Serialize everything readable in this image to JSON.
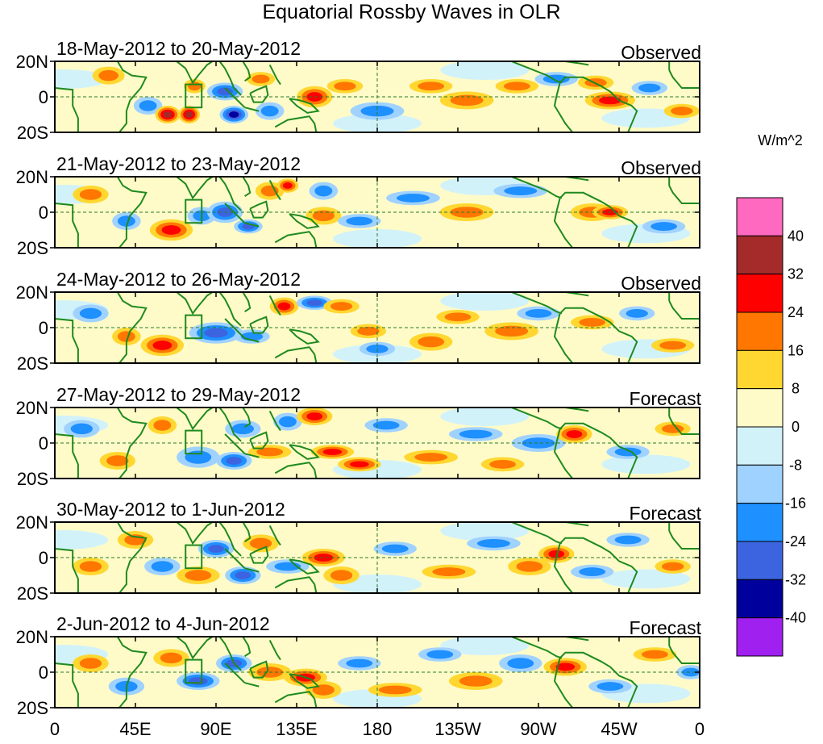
{
  "chart_data": {
    "type": "heatmap",
    "title": "Equatorial Rossby Waves in OLR",
    "units": "W/m^2",
    "x_ticks": [
      "0",
      "45E",
      "90E",
      "135E",
      "180",
      "135W",
      "90W",
      "45W",
      "0"
    ],
    "y_ticks": [
      "20N",
      "0",
      "20S"
    ],
    "xlim": [
      0,
      360
    ],
    "ylim": [
      -20,
      20
    ],
    "colorbar": {
      "levels": [
        "40",
        "32",
        "24",
        "16",
        "8",
        "0",
        "-8",
        "-16",
        "-24",
        "-32",
        "-40"
      ],
      "colors": [
        "#ff69c0",
        "#a52a2a",
        "#ff0000",
        "#ff7700",
        "#ffd730",
        "#fffbc8",
        "#d2f2fa",
        "#a0d2ff",
        "#1f90ff",
        "#3c64e0",
        "#00009c",
        "#a020f0"
      ]
    },
    "panels": [
      {
        "date_range": "18-May-2012 to 20-May-2012",
        "status": "Observed",
        "blobs": [
          [
            30,
            12,
            9,
            5,
            1
          ],
          [
            52,
            -5,
            8,
            5,
            -1
          ],
          [
            63,
            -10,
            7,
            5,
            3
          ],
          [
            75,
            -10,
            6,
            5,
            3
          ],
          [
            78,
            6,
            6,
            4,
            1
          ],
          [
            95,
            3,
            10,
            5,
            -2
          ],
          [
            100,
            -10,
            8,
            5,
            -4
          ],
          [
            115,
            10,
            8,
            4,
            1
          ],
          [
            120,
            -8,
            8,
            5,
            -1
          ],
          [
            145,
            0,
            10,
            6,
            2
          ],
          [
            162,
            6,
            10,
            4,
            1
          ],
          [
            180,
            -8,
            15,
            5,
            -1
          ],
          [
            210,
            6,
            12,
            4,
            1
          ],
          [
            230,
            -2,
            15,
            5,
            1
          ],
          [
            258,
            6,
            12,
            4,
            1
          ],
          [
            280,
            10,
            12,
            4,
            -1
          ],
          [
            302,
            8,
            10,
            4,
            1
          ],
          [
            310,
            -2,
            14,
            5,
            2
          ],
          [
            332,
            5,
            10,
            4,
            -1
          ],
          [
            350,
            -8,
            10,
            4,
            1
          ]
        ]
      },
      {
        "date_range": "21-May-2012 to 23-May-2012",
        "status": "Observed",
        "blobs": [
          [
            20,
            10,
            10,
            5,
            1
          ],
          [
            40,
            -5,
            8,
            5,
            -1
          ],
          [
            65,
            -10,
            12,
            6,
            2
          ],
          [
            82,
            -2,
            8,
            5,
            -1
          ],
          [
            95,
            0,
            10,
            6,
            -2
          ],
          [
            108,
            -8,
            8,
            4,
            -2
          ],
          [
            120,
            12,
            8,
            5,
            1
          ],
          [
            130,
            15,
            6,
            4,
            2
          ],
          [
            150,
            -2,
            10,
            5,
            1
          ],
          [
            150,
            12,
            8,
            5,
            -1
          ],
          [
            170,
            -5,
            12,
            4,
            -1
          ],
          [
            200,
            8,
            15,
            4,
            -1
          ],
          [
            230,
            0,
            15,
            5,
            1
          ],
          [
            260,
            12,
            15,
            4,
            -1
          ],
          [
            300,
            0,
            12,
            5,
            1
          ],
          [
            310,
            0,
            10,
            4,
            2
          ],
          [
            340,
            -8,
            12,
            4,
            -1
          ]
        ]
      },
      {
        "date_range": "24-May-2012 to 26-May-2012",
        "status": "Observed",
        "blobs": [
          [
            20,
            8,
            10,
            5,
            -1
          ],
          [
            40,
            -5,
            8,
            5,
            1
          ],
          [
            60,
            -10,
            12,
            6,
            2
          ],
          [
            90,
            -3,
            15,
            6,
            -2
          ],
          [
            110,
            -5,
            10,
            4,
            -1
          ],
          [
            128,
            12,
            8,
            5,
            2
          ],
          [
            145,
            14,
            10,
            4,
            -2
          ],
          [
            160,
            12,
            10,
            4,
            1
          ],
          [
            175,
            -2,
            10,
            4,
            1
          ],
          [
            180,
            -12,
            10,
            4,
            -1
          ],
          [
            210,
            -8,
            12,
            5,
            1
          ],
          [
            225,
            6,
            12,
            4,
            1
          ],
          [
            255,
            -2,
            15,
            5,
            1
          ],
          [
            270,
            8,
            12,
            4,
            -1
          ],
          [
            300,
            3,
            12,
            4,
            1
          ],
          [
            325,
            8,
            10,
            4,
            -1
          ],
          [
            345,
            -10,
            12,
            4,
            1
          ]
        ]
      },
      {
        "date_range": "27-May-2012 to 29-May-2012",
        "status": "Forecast",
        "blobs": [
          [
            15,
            8,
            10,
            5,
            -1
          ],
          [
            35,
            -10,
            10,
            5,
            1
          ],
          [
            60,
            10,
            8,
            5,
            1
          ],
          [
            80,
            -8,
            12,
            6,
            -1
          ],
          [
            100,
            -10,
            10,
            5,
            -2
          ],
          [
            105,
            8,
            10,
            5,
            -1
          ],
          [
            120,
            -5,
            12,
            4,
            1
          ],
          [
            130,
            12,
            8,
            5,
            -1
          ],
          [
            145,
            15,
            10,
            5,
            2
          ],
          [
            155,
            -5,
            12,
            4,
            2
          ],
          [
            170,
            -12,
            12,
            4,
            2
          ],
          [
            185,
            10,
            12,
            4,
            -1
          ],
          [
            210,
            -8,
            15,
            4,
            1
          ],
          [
            235,
            5,
            15,
            4,
            -1
          ],
          [
            250,
            -12,
            12,
            4,
            1
          ],
          [
            270,
            0,
            15,
            5,
            -1
          ],
          [
            290,
            5,
            10,
            5,
            2
          ],
          [
            320,
            -5,
            12,
            4,
            -1
          ],
          [
            345,
            8,
            10,
            4,
            1
          ]
        ]
      },
      {
        "date_range": "30-May-2012 to 1-Jun-2012",
        "status": "Forecast",
        "blobs": [
          [
            20,
            -5,
            10,
            5,
            1
          ],
          [
            45,
            10,
            10,
            5,
            1
          ],
          [
            60,
            -5,
            10,
            5,
            -1
          ],
          [
            80,
            -10,
            12,
            5,
            1
          ],
          [
            90,
            5,
            10,
            5,
            -2
          ],
          [
            105,
            -10,
            10,
            5,
            -2
          ],
          [
            115,
            8,
            10,
            5,
            1
          ],
          [
            130,
            -5,
            12,
            4,
            -1
          ],
          [
            150,
            0,
            12,
            5,
            2
          ],
          [
            160,
            -10,
            10,
            5,
            1
          ],
          [
            190,
            5,
            12,
            4,
            -1
          ],
          [
            220,
            -8,
            15,
            4,
            1
          ],
          [
            245,
            8,
            15,
            4,
            -1
          ],
          [
            265,
            -5,
            12,
            5,
            1
          ],
          [
            280,
            2,
            10,
            5,
            2
          ],
          [
            300,
            -8,
            12,
            4,
            -1
          ],
          [
            320,
            10,
            12,
            4,
            -1
          ],
          [
            345,
            -5,
            10,
            4,
            1
          ]
        ]
      },
      {
        "date_range": "2-Jun-2012 to 4-Jun-2012",
        "status": "Forecast",
        "blobs": [
          [
            20,
            5,
            10,
            5,
            1
          ],
          [
            40,
            -8,
            10,
            5,
            -1
          ],
          [
            65,
            8,
            10,
            5,
            1
          ],
          [
            80,
            -5,
            12,
            5,
            -2
          ],
          [
            100,
            5,
            10,
            5,
            -2
          ],
          [
            120,
            0,
            12,
            5,
            1
          ],
          [
            140,
            -3,
            12,
            5,
            2
          ],
          [
            150,
            -10,
            10,
            5,
            1
          ],
          [
            170,
            5,
            12,
            4,
            -1
          ],
          [
            190,
            -10,
            15,
            4,
            1
          ],
          [
            215,
            10,
            12,
            4,
            -1
          ],
          [
            235,
            -5,
            15,
            5,
            1
          ],
          [
            260,
            5,
            12,
            5,
            -1
          ],
          [
            285,
            3,
            12,
            5,
            2
          ],
          [
            310,
            -8,
            12,
            4,
            -1
          ],
          [
            335,
            10,
            12,
            4,
            1
          ],
          [
            355,
            0,
            8,
            4,
            -1
          ]
        ]
      }
    ]
  }
}
